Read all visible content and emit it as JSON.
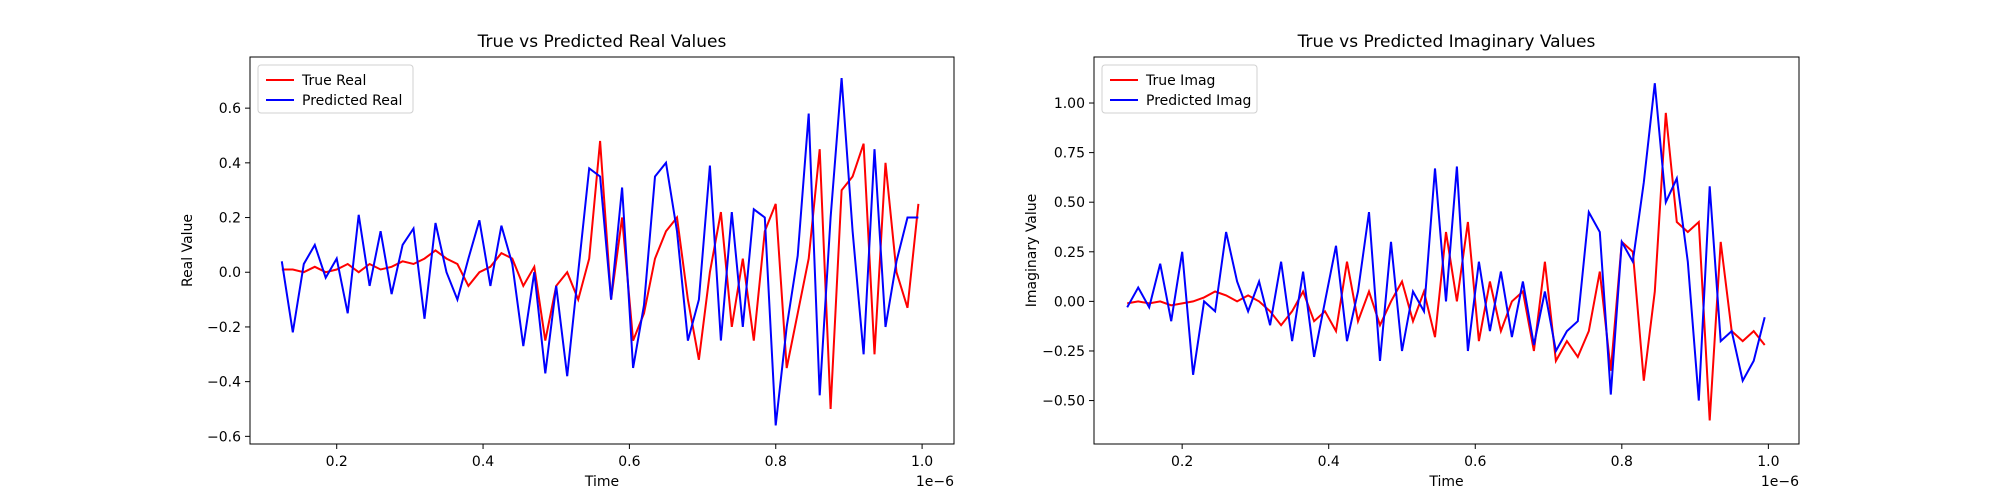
{
  "chart_data": [
    {
      "type": "line",
      "title": "True vs Predicted Real Values",
      "x_label": "Time",
      "y_label": "Real Value",
      "x_offset_label": "1e−6",
      "x": [
        0.125,
        0.14,
        0.155,
        0.17,
        0.185,
        0.2,
        0.215,
        0.23,
        0.245,
        0.26,
        0.275,
        0.29,
        0.305,
        0.32,
        0.335,
        0.35,
        0.365,
        0.38,
        0.395,
        0.41,
        0.425,
        0.44,
        0.455,
        0.47,
        0.485,
        0.5,
        0.515,
        0.53,
        0.545,
        0.56,
        0.575,
        0.59,
        0.605,
        0.62,
        0.635,
        0.65,
        0.665,
        0.68,
        0.695,
        0.71,
        0.725,
        0.74,
        0.755,
        0.77,
        0.785,
        0.8,
        0.815,
        0.83,
        0.845,
        0.86,
        0.875,
        0.89,
        0.905,
        0.92,
        0.935,
        0.95,
        0.965,
        0.98,
        0.995
      ],
      "series": [
        {
          "name": "True Real",
          "color": "#ff0000",
          "values": [
            0.01,
            0.01,
            0.0,
            0.02,
            0.0,
            0.01,
            0.03,
            0.0,
            0.03,
            0.01,
            0.02,
            0.04,
            0.03,
            0.05,
            0.08,
            0.05,
            0.03,
            -0.05,
            0.0,
            0.02,
            0.07,
            0.05,
            -0.05,
            0.02,
            -0.25,
            -0.05,
            0.0,
            -0.1,
            0.05,
            0.48,
            -0.1,
            0.2,
            -0.25,
            -0.15,
            0.05,
            0.15,
            0.2,
            -0.1,
            -0.32,
            0.0,
            0.22,
            -0.2,
            0.05,
            -0.25,
            0.15,
            0.25,
            -0.35,
            -0.15,
            0.05,
            0.45,
            -0.5,
            0.3,
            0.35,
            0.47,
            -0.3,
            0.4,
            0.0,
            -0.13,
            0.25
          ]
        },
        {
          "name": "Predicted Real",
          "color": "#0000ff",
          "values": [
            0.04,
            -0.22,
            0.03,
            0.1,
            -0.02,
            0.05,
            -0.15,
            0.21,
            -0.05,
            0.15,
            -0.08,
            0.1,
            0.16,
            -0.17,
            0.18,
            0.0,
            -0.1,
            0.05,
            0.19,
            -0.05,
            0.17,
            0.03,
            -0.27,
            0.0,
            -0.37,
            -0.05,
            -0.38,
            0.0,
            0.38,
            0.35,
            -0.1,
            0.31,
            -0.35,
            -0.12,
            0.35,
            0.4,
            0.15,
            -0.25,
            -0.1,
            0.39,
            -0.25,
            0.22,
            -0.2,
            0.23,
            0.2,
            -0.56,
            -0.2,
            0.06,
            0.58,
            -0.45,
            0.2,
            0.71,
            0.15,
            -0.3,
            0.45,
            -0.2,
            0.04,
            0.2,
            0.2
          ]
        }
      ],
      "xlim": [
        0.0815,
        1.0436
      ],
      "xticks": [
        0.2,
        0.4,
        0.6,
        0.8,
        {
          "value": 1,
          "label": "1.0"
        }
      ],
      "ylim": [
        -0.628,
        0.787
      ],
      "yticks": [
        {
          "value": -0.6,
          "label": "−0.6"
        },
        {
          "value": -0.4,
          "label": "−0.4"
        },
        {
          "value": -0.2,
          "label": "−0.2"
        },
        {
          "value": 0,
          "label": "0.0"
        },
        0.2,
        0.4,
        0.6
      ],
      "legend": "upper left"
    },
    {
      "type": "line",
      "title": "True vs Predicted Imaginary Values",
      "x_label": "Time",
      "y_label": "Imaginary Value",
      "x_offset_label": "1e−6",
      "x": [
        0.125,
        0.14,
        0.155,
        0.17,
        0.185,
        0.2,
        0.215,
        0.23,
        0.245,
        0.26,
        0.275,
        0.29,
        0.305,
        0.32,
        0.335,
        0.35,
        0.365,
        0.38,
        0.395,
        0.41,
        0.425,
        0.44,
        0.455,
        0.47,
        0.485,
        0.5,
        0.515,
        0.53,
        0.545,
        0.56,
        0.575,
        0.59,
        0.605,
        0.62,
        0.635,
        0.65,
        0.665,
        0.68,
        0.695,
        0.71,
        0.725,
        0.74,
        0.755,
        0.77,
        0.785,
        0.8,
        0.815,
        0.83,
        0.845,
        0.86,
        0.875,
        0.89,
        0.905,
        0.92,
        0.935,
        0.95,
        0.965,
        0.98,
        0.995
      ],
      "series": [
        {
          "name": "True Imag",
          "color": "#ff0000",
          "values": [
            -0.01,
            0.0,
            -0.01,
            0.0,
            -0.02,
            -0.01,
            0.0,
            0.02,
            0.05,
            0.03,
            0.0,
            0.03,
            0.0,
            -0.05,
            -0.12,
            -0.05,
            0.05,
            -0.1,
            -0.05,
            -0.15,
            0.2,
            -0.1,
            0.05,
            -0.12,
            0.0,
            0.1,
            -0.1,
            0.05,
            -0.18,
            0.35,
            0.0,
            0.4,
            -0.2,
            0.1,
            -0.15,
            0.0,
            0.05,
            -0.25,
            0.2,
            -0.3,
            -0.2,
            -0.28,
            -0.15,
            0.15,
            -0.35,
            0.3,
            0.25,
            -0.4,
            0.05,
            0.95,
            0.4,
            0.35,
            0.4,
            -0.6,
            0.3,
            -0.15,
            -0.2,
            -0.15,
            -0.22
          ]
        },
        {
          "name": "Predicted Imag",
          "color": "#0000ff",
          "values": [
            -0.03,
            0.07,
            -0.03,
            0.19,
            -0.1,
            0.25,
            -0.37,
            0.0,
            -0.05,
            0.35,
            0.1,
            -0.05,
            0.1,
            -0.12,
            0.2,
            -0.2,
            0.15,
            -0.28,
            0.0,
            0.28,
            -0.2,
            0.05,
            0.45,
            -0.3,
            0.3,
            -0.25,
            0.05,
            -0.05,
            0.67,
            0.0,
            0.68,
            -0.25,
            0.2,
            -0.15,
            0.15,
            -0.18,
            0.1,
            -0.22,
            0.05,
            -0.25,
            -0.15,
            -0.1,
            0.45,
            0.35,
            -0.47,
            0.3,
            0.2,
            0.6,
            1.1,
            0.5,
            0.62,
            0.2,
            -0.5,
            0.58,
            -0.2,
            -0.15,
            -0.4,
            -0.3,
            -0.08
          ]
        }
      ],
      "xlim": [
        0.0797,
        1.0418
      ],
      "xticks": [
        0.2,
        0.4,
        0.6,
        0.8,
        {
          "value": 1,
          "label": "1.0"
        }
      ],
      "ylim": [
        -0.719,
        1.232
      ],
      "yticks": [
        {
          "value": -0.5,
          "label": "−0.50"
        },
        {
          "value": -0.25,
          "label": "−0.25"
        },
        {
          "value": 0,
          "label": "0.00"
        },
        {
          "value": 0.25,
          "label": "0.25"
        },
        {
          "value": 0.5,
          "label": "0.50"
        },
        {
          "value": 0.75,
          "label": "0.75"
        },
        {
          "value": 1,
          "label": "1.00"
        }
      ],
      "legend": "upper left"
    }
  ]
}
